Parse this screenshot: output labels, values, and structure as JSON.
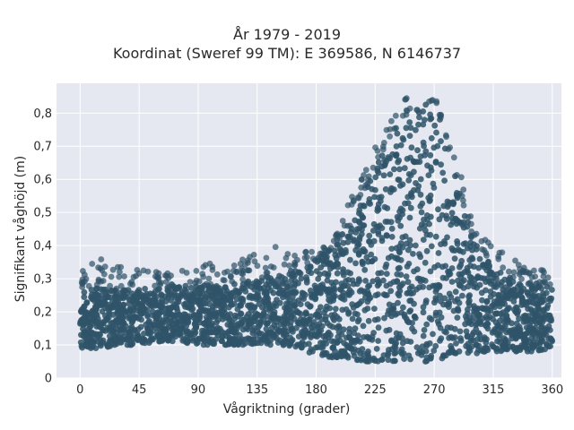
{
  "chart_data": {
    "type": "scatter",
    "title": "År 1979 - 2019",
    "subtitle": "Koordinat (Sweref 99 TM): E 369586, N 6146737",
    "xlabel": "Vågriktning (grader)",
    "ylabel": "Signifikant våghöjd (m)",
    "xlim": [
      -18,
      367
    ],
    "ylim": [
      0,
      0.89
    ],
    "x_ticks": [
      0,
      45,
      90,
      135,
      180,
      225,
      270,
      315,
      360
    ],
    "x_tick_labels": [
      "0",
      "45",
      "90",
      "135",
      "180",
      "225",
      "270",
      "315",
      "360"
    ],
    "y_ticks": [
      0,
      0.1,
      0.2,
      0.3,
      0.4,
      0.5,
      0.6,
      0.7,
      0.8
    ],
    "y_tick_labels": [
      "0",
      "0,1",
      "0,2",
      "0,3",
      "0,4",
      "0,5",
      "0,6",
      "0,7",
      "0,8"
    ],
    "grid": true,
    "colors": {
      "marker": "#2f5368",
      "plot_background": "#e5e8f0",
      "grid": "#ffffff"
    },
    "x": [
      0,
      15,
      30,
      45,
      60,
      75,
      90,
      105,
      120,
      135,
      150,
      165,
      180,
      195,
      205,
      215,
      225,
      235,
      245,
      255,
      265,
      272,
      280,
      290,
      300,
      315,
      330,
      345,
      360
    ],
    "y_low": [
      0.09,
      0.09,
      0.1,
      0.1,
      0.11,
      0.11,
      0.1,
      0.1,
      0.1,
      0.1,
      0.1,
      0.09,
      0.07,
      0.06,
      0.06,
      0.05,
      0.05,
      0.05,
      0.05,
      0.05,
      0.05,
      0.05,
      0.06,
      0.07,
      0.07,
      0.08,
      0.08,
      0.08,
      0.09
    ],
    "y_high": [
      0.27,
      0.27,
      0.27,
      0.27,
      0.27,
      0.28,
      0.28,
      0.28,
      0.29,
      0.3,
      0.31,
      0.33,
      0.36,
      0.4,
      0.44,
      0.55,
      0.63,
      0.72,
      0.78,
      0.8,
      0.83,
      0.82,
      0.7,
      0.55,
      0.42,
      0.33,
      0.3,
      0.29,
      0.28
    ],
    "y_outer_max": [
      0.33,
      0.36,
      0.34,
      0.33,
      0.32,
      0.32,
      0.36,
      0.34,
      0.35,
      0.38,
      0.4,
      0.37,
      0.4,
      0.43,
      0.53,
      0.62,
      0.72,
      0.76,
      0.85,
      0.84,
      0.84,
      0.84,
      0.73,
      0.62,
      0.45,
      0.4,
      0.37,
      0.35,
      0.32
    ]
  }
}
